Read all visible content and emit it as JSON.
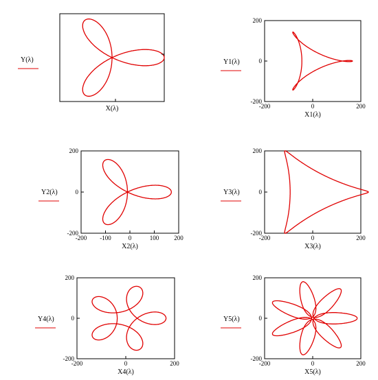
{
  "chart_data": [
    {
      "type": "line",
      "xlabel": "X(λ)",
      "ylabel": "Y(λ)",
      "curve": {
        "petals": 3,
        "big": 0,
        "small": 0,
        "amp": 80,
        "order": "rose"
      },
      "xlim": [
        -80,
        80
      ],
      "ylim": [
        -80,
        80
      ],
      "xticks": [],
      "yticks": []
    },
    {
      "type": "line",
      "xlabel": "X1(λ)",
      "ylabel": "Y1(λ)",
      "curve": {
        "petals": 3,
        "big": 110,
        "small": 45,
        "order": "epi"
      },
      "xlim": [
        -200,
        200
      ],
      "ylim": [
        -200,
        200
      ],
      "xticks": [
        "-200",
        "0",
        "200"
      ],
      "yticks": [
        "200",
        "0",
        "-200"
      ]
    },
    {
      "type": "line",
      "xlabel": "X2(λ)",
      "ylabel": "Y2(λ)",
      "curve": {
        "petals": 3,
        "amp": 180,
        "order": "rose-offset"
      },
      "xlim": [
        -200,
        200
      ],
      "ylim": [
        -200,
        200
      ],
      "xticks": [
        "-200",
        "-100",
        "0",
        "100",
        "200"
      ],
      "yticks": [
        "200",
        "0",
        "-200"
      ]
    },
    {
      "type": "line",
      "xlabel": "X3(λ)",
      "ylabel": "Y3(λ)",
      "curve": {
        "petals": 3,
        "big": 130,
        "small": 55,
        "order": "epi2"
      },
      "xlim": [
        -200,
        200
      ],
      "ylim": [
        -200,
        200
      ],
      "xticks": [
        "-200",
        "0",
        "200"
      ],
      "yticks": [
        "200",
        "0",
        "-200"
      ]
    },
    {
      "type": "line",
      "xlabel": "X4(λ)",
      "ylabel": "Y4(λ)",
      "curve": {
        "petals": 5,
        "big": 110,
        "small": 60,
        "order": "epi"
      },
      "xlim": [
        -200,
        200
      ],
      "ylim": [
        -200,
        200
      ],
      "xticks": [
        "-200",
        "0",
        "200"
      ],
      "yticks": [
        "200",
        "0",
        "-200"
      ]
    },
    {
      "type": "line",
      "xlabel": "X5(λ)",
      "ylabel": "Y5(λ)",
      "curve": {
        "petals": 7,
        "big": 115,
        "small": 65,
        "order": "epi"
      },
      "xlim": [
        -200,
        200
      ],
      "ylim": [
        -200,
        200
      ],
      "xticks": [
        "-200",
        "0",
        "200"
      ],
      "yticks": [
        "200",
        "0",
        "-200"
      ]
    }
  ],
  "colors": {
    "curve": "#e00000",
    "frame": "#000000",
    "underline": "#e00000"
  }
}
